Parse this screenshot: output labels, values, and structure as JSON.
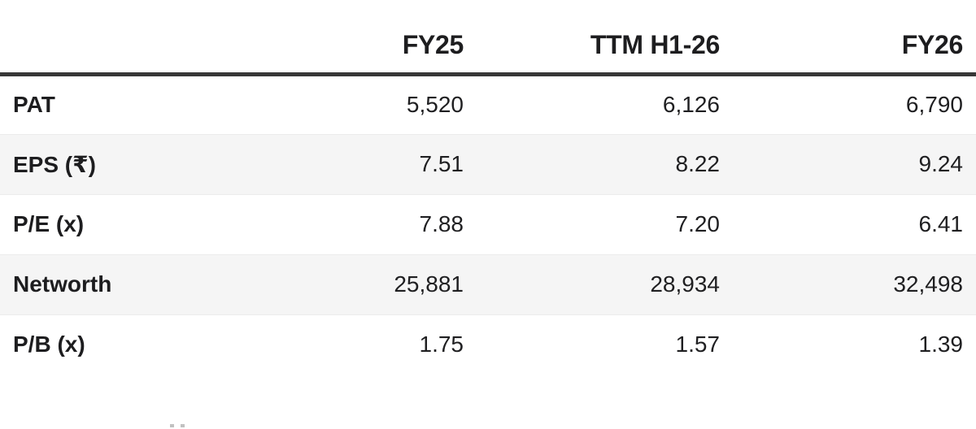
{
  "colors": {
    "text": "#1d1d1f",
    "header_border": "#373737",
    "alt_row_bg": "#f5f5f5",
    "row_separator": "#ececec",
    "background": "#ffffff"
  },
  "table": {
    "columns": [
      "",
      "FY25",
      "TTM H1-26",
      "FY26"
    ],
    "rows": [
      {
        "label": "PAT",
        "values": [
          "5,520",
          "6,126",
          "6,790"
        ]
      },
      {
        "label": "EPS (₹)",
        "values": [
          "7.51",
          "8.22",
          "9.24"
        ]
      },
      {
        "label": "P/E (x)",
        "values": [
          "7.88",
          "7.20",
          "6.41"
        ]
      },
      {
        "label": "Networth",
        "values": [
          "25,881",
          "28,934",
          "32,498"
        ]
      },
      {
        "label": "P/B (x)",
        "values": [
          "1.75",
          "1.57",
          "1.39"
        ]
      }
    ]
  },
  "chart_data": {
    "type": "table",
    "columns": [
      "FY25",
      "TTM H1-26",
      "FY26"
    ],
    "rows": [
      {
        "metric": "PAT",
        "values": [
          5520,
          6126,
          6790
        ]
      },
      {
        "metric": "EPS (₹)",
        "values": [
          7.51,
          8.22,
          9.24
        ]
      },
      {
        "metric": "P/E (x)",
        "values": [
          7.88,
          7.2,
          6.41
        ]
      },
      {
        "metric": "Networth",
        "values": [
          25881,
          28934,
          32498
        ]
      },
      {
        "metric": "P/B (x)",
        "values": [
          1.75,
          1.57,
          1.39
        ]
      }
    ]
  }
}
